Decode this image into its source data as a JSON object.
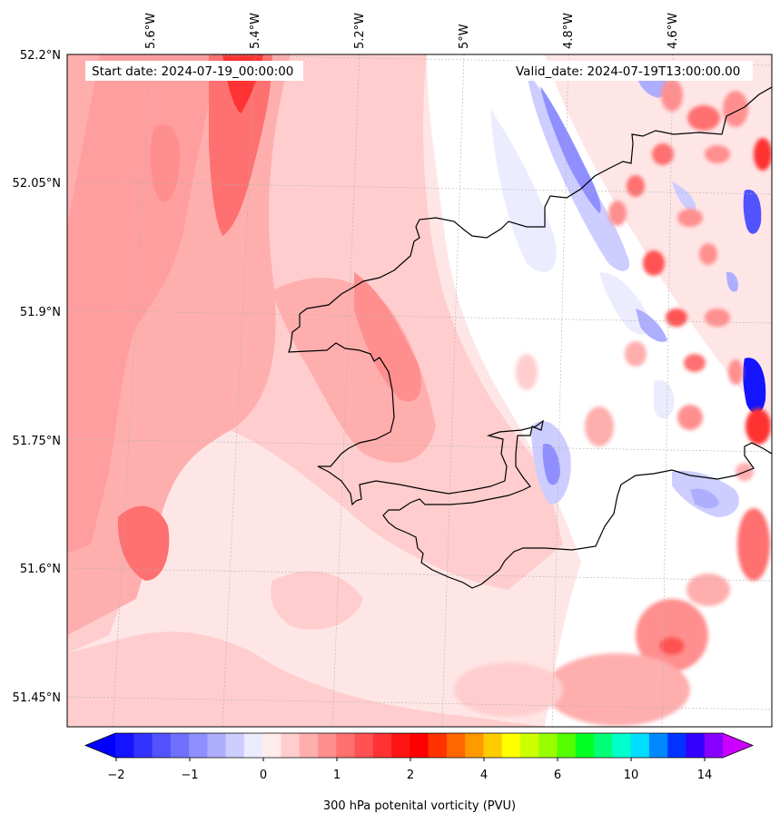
{
  "header": {
    "start_date": "Start date: 2024-07-19_00:00:00",
    "valid_date": "Valid_date: 2024-07-19T13:00:00.00"
  },
  "map": {
    "lon_labels": [
      "5.6°W",
      "5.4°W",
      "5.2°W",
      "5°W",
      "4.8°W",
      "4.6°W"
    ],
    "lat_labels": [
      "52.2°N",
      "52.05°N",
      "51.9°N",
      "51.75°N",
      "51.6°N",
      "51.45°N"
    ],
    "background_color": "#ffe6e6"
  },
  "colorbar": {
    "label": "300 hPa potenital vorticity (PVU)",
    "tick_labels": [
      "−2",
      "−1",
      "0",
      "1",
      "2",
      "4",
      "6",
      "10",
      "14"
    ],
    "colors": [
      "#1414ff",
      "#3333ff",
      "#5252ff",
      "#7070ff",
      "#8f8fff",
      "#aeaeff",
      "#cdcdff",
      "#ececff",
      "#ffecec",
      "#ffcdcd",
      "#ffaeae",
      "#ff8f8f",
      "#ff7070",
      "#ff5252",
      "#ff3333",
      "#ff1414",
      "#ff0000",
      "#ff3300",
      "#ff6600",
      "#ff9900",
      "#ffcc00",
      "#ffff00",
      "#ccff00",
      "#99ff00",
      "#55ff00",
      "#00ff22",
      "#00ff77",
      "#00ffcc",
      "#00ddff",
      "#0088ff",
      "#0033ff",
      "#3300ff",
      "#8800ff"
    ],
    "under_color": "#0000ff",
    "over_color": "#cc00ff"
  }
}
